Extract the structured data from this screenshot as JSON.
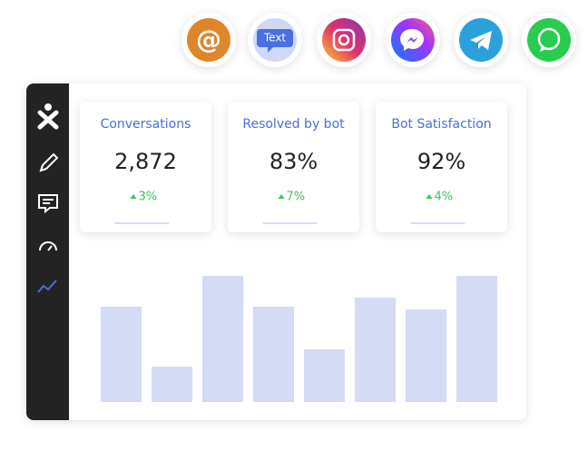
{
  "icons": {
    "email": "@",
    "sms": "Text"
  },
  "stats": [
    {
      "label": "Conversations",
      "value": "2,872",
      "change": "3%"
    },
    {
      "label": "Resolved by bot",
      "value": "83%",
      "change": "7%"
    },
    {
      "label": "Bot Satisfaction",
      "value": "92%",
      "change": "4%"
    }
  ],
  "chart_data": {
    "type": "bar",
    "categories": [
      null,
      null,
      null,
      null,
      null,
      null,
      null,
      null
    ],
    "values": [
      105,
      39,
      139,
      105,
      58,
      115,
      102,
      139
    ],
    "color": "#d3dbf5",
    "ylim": [
      0,
      140
    ]
  }
}
